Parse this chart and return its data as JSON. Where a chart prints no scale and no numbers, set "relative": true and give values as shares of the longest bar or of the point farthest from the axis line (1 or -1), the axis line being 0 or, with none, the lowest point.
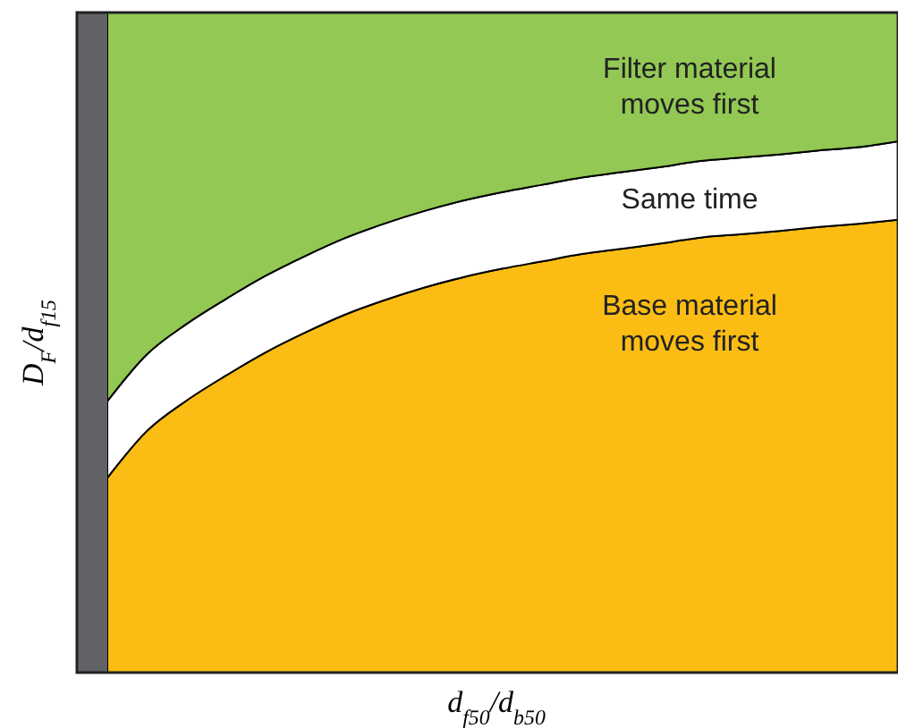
{
  "chart_data": {
    "type": "area",
    "stacked": true,
    "relative": true,
    "xlabel": "d$_{f50}$/d$_{b50}$",
    "ylabel": "D$_{F}$/d$_{f15}$",
    "categories": [
      null,
      null,
      null,
      null,
      null,
      null,
      null,
      null,
      null,
      null,
      null,
      null,
      null,
      null,
      null,
      null,
      null,
      null,
      null,
      null,
      null
    ],
    "series": [
      {
        "name": "Base material moves first",
        "color": "#fbbd13",
        "values": [
          0.295,
          0.366,
          0.412,
          0.45,
          0.485,
          0.515,
          0.542,
          0.564,
          0.583,
          0.599,
          0.612,
          0.623,
          0.634,
          0.642,
          0.65,
          0.659,
          0.664,
          0.669,
          0.675,
          0.68,
          0.686
        ]
      },
      {
        "name": "Same time",
        "color": "#ffffff",
        "values": [
          0.116,
          0.116,
          0.116,
          0.116,
          0.116,
          0.116,
          0.116,
          0.116,
          0.116,
          0.116,
          0.116,
          0.116,
          0.116,
          0.116,
          0.116,
          0.116,
          0.116,
          0.116,
          0.116,
          0.116,
          0.119
        ]
      },
      {
        "name": "Filter material moves first",
        "color": "#92c853",
        "values": [
          0.589,
          0.518,
          0.472,
          0.434,
          0.399,
          0.369,
          0.342,
          0.32,
          0.301,
          0.285,
          0.272,
          0.261,
          0.25,
          0.242,
          0.234,
          0.225,
          0.22,
          0.215,
          0.209,
          0.204,
          0.195
        ]
      }
    ]
  }
}
